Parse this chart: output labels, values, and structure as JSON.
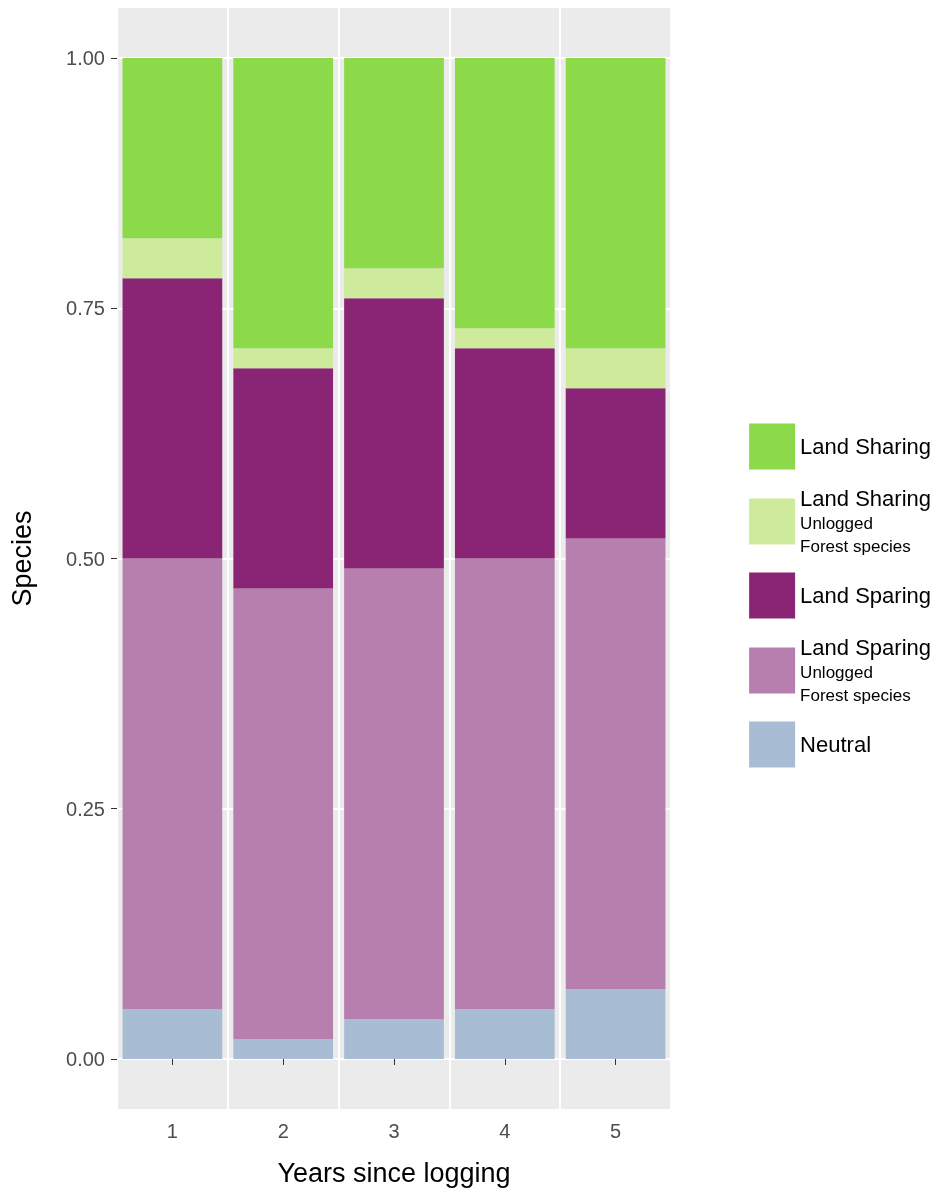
{
  "chart_data": {
    "type": "bar",
    "xlabel": "Years since logging",
    "ylabel": "Species",
    "categories": [
      "1",
      "2",
      "3",
      "4",
      "5"
    ],
    "stacked": true,
    "ylim": [
      -0.05,
      1.05
    ],
    "yticks": [
      {
        "value": 0,
        "label": "0.00"
      },
      {
        "value": 0.25,
        "label": "0.25"
      },
      {
        "value": 0.5,
        "label": "0.50"
      },
      {
        "value": 0.75,
        "label": "0.75"
      },
      {
        "value": 1,
        "label": "1.00"
      }
    ],
    "grid": true,
    "legend": "right",
    "series": [
      {
        "name": "Neutral",
        "color": "#a8bdd3",
        "values": [
          0.05,
          0.02,
          0.04,
          0.05,
          0.07
        ]
      },
      {
        "name": "Land Sparing\nUnlogged\nForest species",
        "color": "#b77fae",
        "values": [
          0.45,
          0.45,
          0.45,
          0.45,
          0.45
        ]
      },
      {
        "name": "Land Sparing",
        "color": "#892574",
        "values": [
          0.28,
          0.22,
          0.27,
          0.21,
          0.15
        ]
      },
      {
        "name": "Land Sharing\nUnlogged\nForest species",
        "color": "#cdeb9a",
        "values": [
          0.04,
          0.02,
          0.03,
          0.02,
          0.04
        ]
      },
      {
        "name": "Land Sharing",
        "color": "#8cd94a",
        "values": [
          0.18,
          0.29,
          0.21,
          0.27,
          0.29
        ]
      }
    ]
  }
}
